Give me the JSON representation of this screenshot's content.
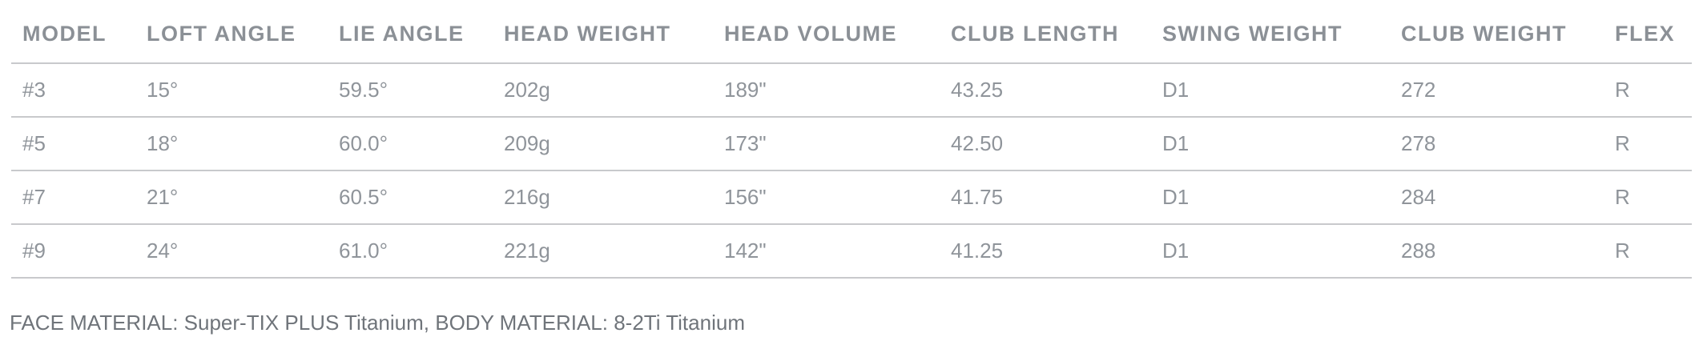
{
  "table": {
    "headers": [
      "MODEL",
      "LOFT ANGLE",
      "LIE ANGLE",
      "HEAD WEIGHT",
      "HEAD VOLUME",
      "CLUB LENGTH",
      "SWING WEIGHT",
      "CLUB WEIGHT",
      "FLEX"
    ],
    "rows": [
      [
        "#3",
        "15°",
        "59.5°",
        "202g",
        "189\"",
        "43.25",
        "D1",
        "272",
        "R"
      ],
      [
        "#5",
        "18°",
        "60.0°",
        "209g",
        "173\"",
        "42.50",
        "D1",
        "278",
        "R"
      ],
      [
        "#7",
        "21°",
        "60.5°",
        "216g",
        "156\"",
        "41.75",
        "D1",
        "284",
        "R"
      ],
      [
        "#9",
        "24°",
        "61.0°",
        "221g",
        "142\"",
        "41.25",
        "D1",
        "288",
        "R"
      ]
    ]
  },
  "footnote": "FACE MATERIAL: Super-TIX PLUS Titanium, BODY MATERIAL: 8-2Ti Titanium",
  "colors": {
    "header_text": "#8b9096",
    "body_text": "#8f949a",
    "rule": "#c8c9cc",
    "footnote_text": "#6f747a"
  }
}
